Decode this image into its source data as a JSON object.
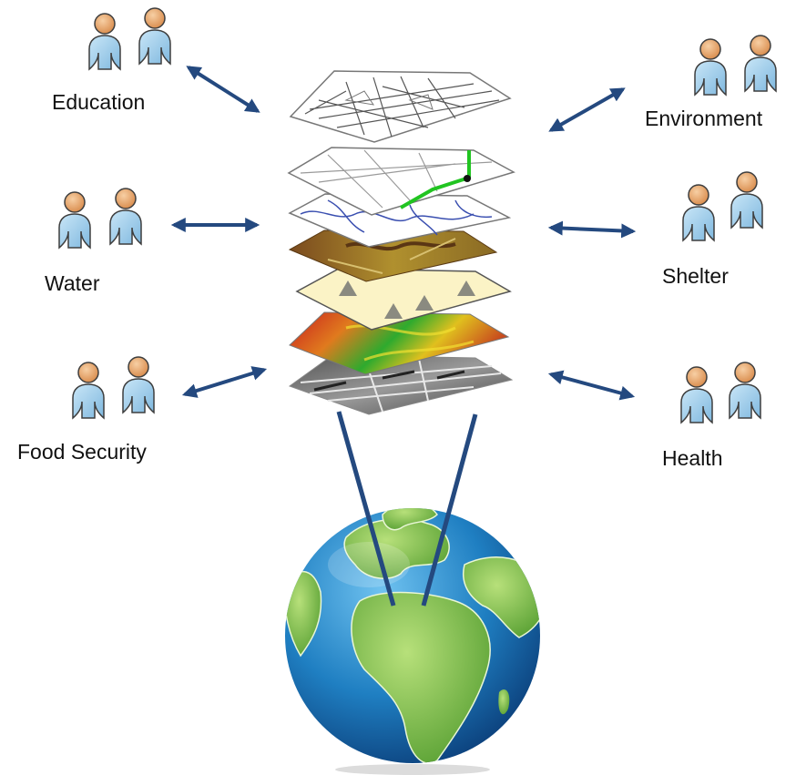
{
  "groups": [
    {
      "id": "education",
      "label": "Education"
    },
    {
      "id": "environment",
      "label": "Environment"
    },
    {
      "id": "water",
      "label": "Water"
    },
    {
      "id": "shelter",
      "label": "Shelter"
    },
    {
      "id": "food",
      "label": "Food Security"
    },
    {
      "id": "health",
      "label": "Health"
    }
  ],
  "colors": {
    "arrow": "#24497f",
    "person_head": "#e8a56a",
    "person_body": "#a9d3ec",
    "globe_ocean": "#1f7fc2",
    "globe_land": "#7cc04a"
  },
  "layers": [
    {
      "name": "street-map-layer"
    },
    {
      "name": "roads-network-layer"
    },
    {
      "name": "hydrology-layer"
    },
    {
      "name": "land-cover-layer"
    },
    {
      "name": "points-of-interest-layer"
    },
    {
      "name": "elevation-layer"
    },
    {
      "name": "satellite-imagery-layer"
    }
  ]
}
